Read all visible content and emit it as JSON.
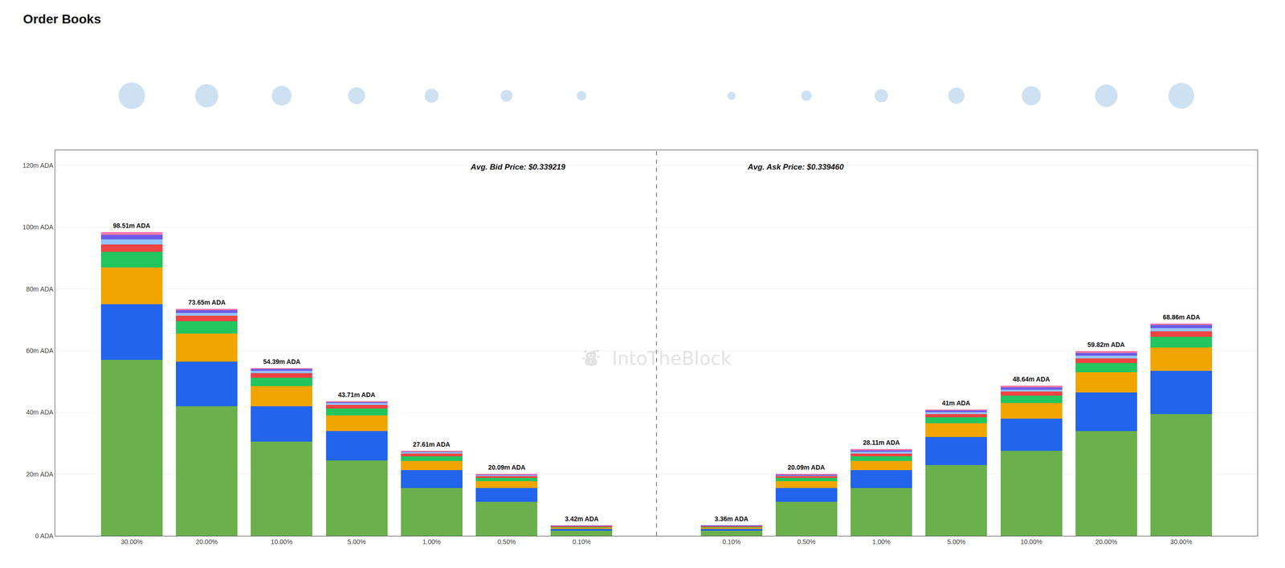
{
  "chart_data": {
    "type": "bar",
    "stacked": true,
    "title": "Order Books",
    "categories": [
      "30.00%",
      "20.00%",
      "10.00%",
      "5.00%",
      "1.00%",
      "0.50%",
      "0.10%",
      null,
      "0.10%",
      "0.50%",
      "1.00%",
      "5.00%",
      "10.00%",
      "20.00%",
      "30.00%"
    ],
    "series": [
      {
        "color": "#6ab04c",
        "values": [
          57.0,
          42.0,
          30.5,
          24.5,
          15.5,
          11.0,
          1.7,
          null,
          1.7,
          11.0,
          15.5,
          23.0,
          27.5,
          34.0,
          39.5
        ]
      },
      {
        "color": "#2264eb",
        "values": [
          18.0,
          14.5,
          11.5,
          9.5,
          5.8,
          4.5,
          0.6,
          null,
          0.6,
          4.5,
          5.8,
          9.0,
          10.5,
          12.5,
          14.0
        ]
      },
      {
        "color": "#f0a500",
        "values": [
          12.0,
          9.0,
          6.5,
          5.0,
          3.0,
          2.2,
          0.4,
          null,
          0.4,
          2.2,
          3.0,
          4.5,
          5.0,
          6.5,
          7.5
        ]
      },
      {
        "color": "#22c55e",
        "values": [
          5.0,
          4.0,
          2.8,
          2.3,
          1.5,
          1.0,
          0.3,
          null,
          0.3,
          1.0,
          1.5,
          2.0,
          2.5,
          3.0,
          3.5
        ]
      },
      {
        "color": "#ef4444",
        "values": [
          2.5,
          1.8,
          1.4,
          1.1,
          0.8,
          0.7,
          0.2,
          null,
          0.2,
          0.6,
          0.8,
          1.0,
          1.2,
          1.5,
          1.8
        ]
      },
      {
        "color": "#93c5fd",
        "values": [
          1.5,
          1.0,
          0.8,
          0.6,
          0.5,
          0.4,
          0.1,
          null,
          0.1,
          0.4,
          0.6,
          0.6,
          0.7,
          0.9,
          1.0
        ]
      },
      {
        "color": "#6c5ce7",
        "values": [
          1.5,
          0.85,
          0.59,
          0.41,
          0.31,
          0.19,
          0.07,
          null,
          0.06,
          0.24,
          0.51,
          0.5,
          0.74,
          0.92,
          1.06
        ]
      },
      {
        "color": "#fd79a8",
        "values": [
          1.01,
          0.5,
          0.31,
          0.3,
          0.2,
          0.1,
          0.05,
          null,
          0.0,
          0.15,
          0.4,
          0.4,
          0.5,
          0.5,
          0.5
        ]
      }
    ],
    "totals": [
      98.51,
      73.65,
      54.39,
      43.71,
      27.61,
      20.09,
      3.42,
      null,
      3.36,
      20.09,
      28.11,
      41.0,
      48.64,
      59.82,
      68.86
    ],
    "total_labels": [
      "98.51m ADA",
      "73.65m ADA",
      "54.39m ADA",
      "43.71m ADA",
      "27.61m ADA",
      "20.09m ADA",
      "3.42m ADA",
      null,
      "3.36m ADA",
      "20.09m ADA",
      "28.11m ADA",
      "41m ADA",
      "48.64m ADA",
      "59.82m ADA",
      "68.86m ADA"
    ],
    "circle_sizes": [
      0.072,
      0.063,
      0.054,
      0.046,
      0.038,
      0.032,
      0.026,
      null,
      0.022,
      0.028,
      0.036,
      0.044,
      0.052,
      0.061,
      0.07
    ],
    "circle_color": "#b8d4ee",
    "annotations": [
      "Avg. Bid Price: $0.339219",
      "Avg. Ask Price: $0.339460"
    ],
    "watermark": "⛇  IntoTheBlock",
    "ylim": [
      0,
      125
    ],
    "yticks": [
      {
        "value": 0,
        "label": "0 ADA"
      },
      {
        "value": 20,
        "label": "20m ADA"
      },
      {
        "value": 40,
        "label": "40m ADA"
      },
      {
        "value": 60,
        "label": "60m ADA"
      },
      {
        "value": 80,
        "label": "80m ADA"
      },
      {
        "value": 100,
        "label": "100m ADA"
      },
      {
        "value": 120,
        "label": "120m ADA"
      }
    ],
    "grid": true
  }
}
